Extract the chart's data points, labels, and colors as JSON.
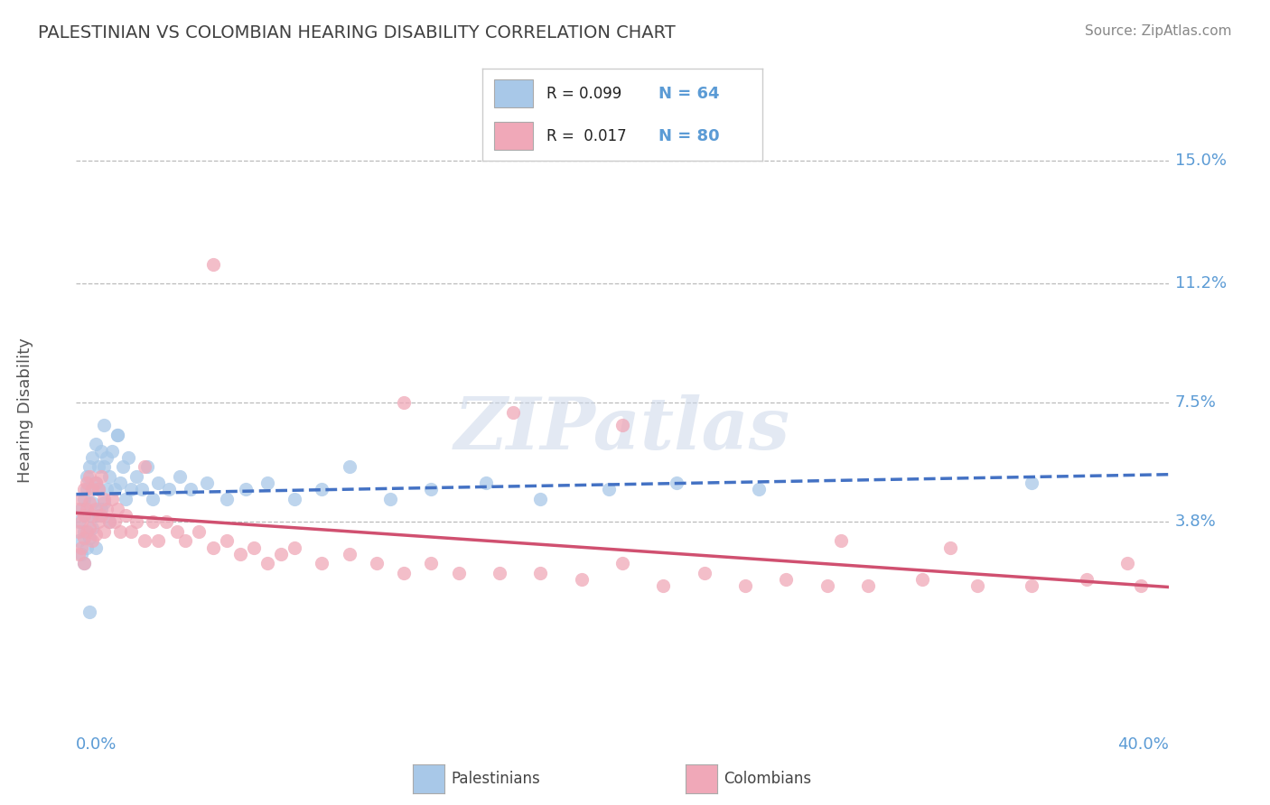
{
  "title": "PALESTINIAN VS COLOMBIAN HEARING DISABILITY CORRELATION CHART",
  "source": "Source: ZipAtlas.com",
  "ylabel": "Hearing Disability",
  "r_values": [
    0.099,
    0.017
  ],
  "n_values": [
    64,
    80
  ],
  "blue_color": "#a8c8e8",
  "pink_color": "#f0a8b8",
  "blue_line_color": "#4472c4",
  "pink_line_color": "#d05070",
  "axis_label_color": "#5b9bd5",
  "title_color": "#404040",
  "source_color": "#888888",
  "ytick_vals": [
    0.038,
    0.075,
    0.112,
    0.15
  ],
  "ytick_labels": [
    "3.8%",
    "7.5%",
    "11.2%",
    "15.0%"
  ],
  "xlim": [
    0.0,
    0.4
  ],
  "ylim": [
    -0.025,
    0.17
  ],
  "background_color": "#ffffff",
  "grid_color": "#bbbbbb",
  "watermark": "ZIPatlas",
  "palestinians_x": [
    0.001,
    0.001,
    0.002,
    0.002,
    0.003,
    0.003,
    0.003,
    0.004,
    0.004,
    0.004,
    0.005,
    0.005,
    0.005,
    0.006,
    0.006,
    0.006,
    0.007,
    0.007,
    0.007,
    0.008,
    0.008,
    0.008,
    0.009,
    0.009,
    0.01,
    0.01,
    0.011,
    0.011,
    0.012,
    0.012,
    0.013,
    0.014,
    0.015,
    0.016,
    0.017,
    0.018,
    0.019,
    0.02,
    0.022,
    0.024,
    0.026,
    0.028,
    0.03,
    0.034,
    0.038,
    0.042,
    0.048,
    0.055,
    0.062,
    0.07,
    0.08,
    0.09,
    0.1,
    0.115,
    0.13,
    0.15,
    0.17,
    0.195,
    0.22,
    0.25,
    0.01,
    0.015,
    0.35,
    0.005
  ],
  "palestinians_y": [
    0.038,
    0.032,
    0.042,
    0.028,
    0.045,
    0.035,
    0.025,
    0.048,
    0.03,
    0.052,
    0.04,
    0.055,
    0.033,
    0.044,
    0.058,
    0.036,
    0.05,
    0.062,
    0.03,
    0.055,
    0.048,
    0.04,
    0.06,
    0.042,
    0.055,
    0.044,
    0.058,
    0.048,
    0.052,
    0.038,
    0.06,
    0.048,
    0.065,
    0.05,
    0.055,
    0.045,
    0.058,
    0.048,
    0.052,
    0.048,
    0.055,
    0.045,
    0.05,
    0.048,
    0.052,
    0.048,
    0.05,
    0.045,
    0.048,
    0.05,
    0.045,
    0.048,
    0.055,
    0.045,
    0.048,
    0.05,
    0.045,
    0.048,
    0.05,
    0.048,
    0.068,
    0.065,
    0.05,
    0.01
  ],
  "colombians_x": [
    0.001,
    0.001,
    0.001,
    0.002,
    0.002,
    0.002,
    0.003,
    0.003,
    0.003,
    0.003,
    0.004,
    0.004,
    0.004,
    0.005,
    0.005,
    0.005,
    0.006,
    0.006,
    0.006,
    0.007,
    0.007,
    0.007,
    0.008,
    0.008,
    0.009,
    0.009,
    0.01,
    0.01,
    0.011,
    0.012,
    0.013,
    0.014,
    0.015,
    0.016,
    0.018,
    0.02,
    0.022,
    0.025,
    0.028,
    0.03,
    0.033,
    0.037,
    0.04,
    0.045,
    0.05,
    0.055,
    0.06,
    0.065,
    0.07,
    0.075,
    0.08,
    0.09,
    0.1,
    0.11,
    0.12,
    0.13,
    0.14,
    0.155,
    0.17,
    0.185,
    0.2,
    0.215,
    0.23,
    0.245,
    0.26,
    0.275,
    0.29,
    0.31,
    0.33,
    0.35,
    0.37,
    0.39,
    0.025,
    0.12,
    0.2,
    0.32,
    0.385,
    0.05,
    0.16,
    0.28
  ],
  "colombians_y": [
    0.042,
    0.035,
    0.028,
    0.045,
    0.038,
    0.03,
    0.048,
    0.04,
    0.033,
    0.025,
    0.05,
    0.042,
    0.035,
    0.052,
    0.044,
    0.036,
    0.048,
    0.04,
    0.032,
    0.05,
    0.042,
    0.034,
    0.048,
    0.038,
    0.052,
    0.04,
    0.045,
    0.035,
    0.042,
    0.038,
    0.045,
    0.038,
    0.042,
    0.035,
    0.04,
    0.035,
    0.038,
    0.032,
    0.038,
    0.032,
    0.038,
    0.035,
    0.032,
    0.035,
    0.03,
    0.032,
    0.028,
    0.03,
    0.025,
    0.028,
    0.03,
    0.025,
    0.028,
    0.025,
    0.022,
    0.025,
    0.022,
    0.022,
    0.022,
    0.02,
    0.025,
    0.018,
    0.022,
    0.018,
    0.02,
    0.018,
    0.018,
    0.02,
    0.018,
    0.018,
    0.02,
    0.018,
    0.055,
    0.075,
    0.068,
    0.03,
    0.025,
    0.118,
    0.072,
    0.032
  ]
}
